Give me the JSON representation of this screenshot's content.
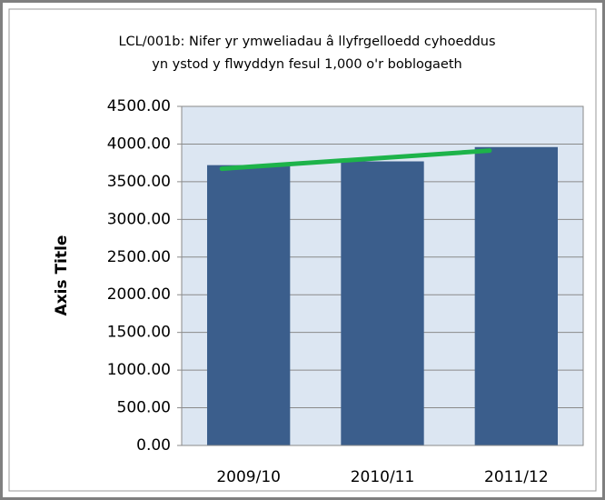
{
  "chart_data": {
    "type": "bar",
    "title_lines": [
      "LCL/001b: Nifer yr ymweliadau â llyfrgelloedd cyhoeddus",
      "yn ystod y flwyddyn fesul 1,000 o'r boblogaeth"
    ],
    "y_axis_label": "Axis Title",
    "categories": [
      "2009/10",
      "2010/11",
      "2011/12"
    ],
    "values": [
      3720,
      3770,
      3960
    ],
    "color": "#3b5e8c",
    "trendline": {
      "type": "linear",
      "color": "#1db34a"
    },
    "ylim": [
      0,
      4500
    ],
    "yticks": [
      {
        "value": 0,
        "label": "0.00"
      },
      {
        "value": 500,
        "label": "500.00"
      },
      {
        "value": 1000,
        "label": "1000.00"
      },
      {
        "value": 1500,
        "label": "1500.00"
      },
      {
        "value": 2000,
        "label": "2000.00"
      },
      {
        "value": 2500,
        "label": "2500.00"
      },
      {
        "value": 3000,
        "label": "3000.00"
      },
      {
        "value": 3500,
        "label": "3500.00"
      },
      {
        "value": 4000,
        "label": "4000.00"
      },
      {
        "value": 4500,
        "label": "4500.00"
      }
    ],
    "grid": true
  }
}
